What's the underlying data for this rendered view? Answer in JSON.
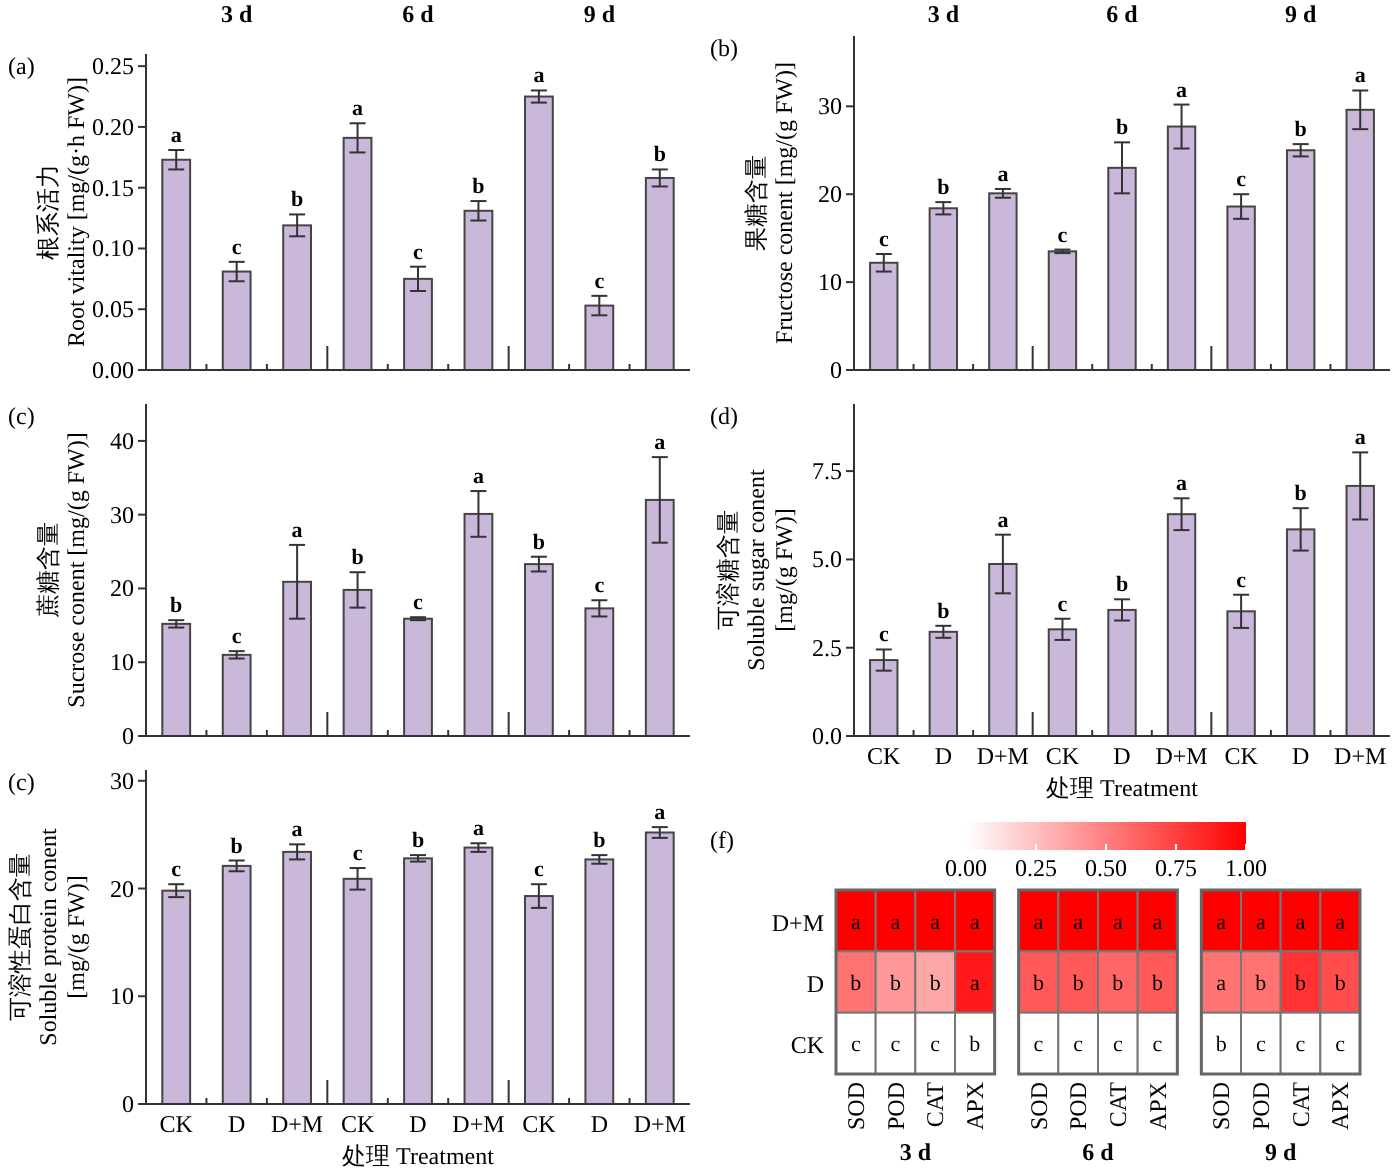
{
  "chart_data": [
    {
      "type": "bar",
      "title": "(a)",
      "ylabel": "根系活力\nRoot vitality [mg/(g·h FW)]",
      "color": "#c9b8da",
      "categories": [
        null,
        null,
        null,
        null,
        null,
        null,
        null,
        null,
        null
      ],
      "values": [
        0.173,
        0.081,
        0.119,
        0.191,
        0.075,
        0.131,
        0.225,
        0.053,
        0.158
      ],
      "errors": [
        0.008,
        0.008,
        0.009,
        0.012,
        0.01,
        0.008,
        0.005,
        0.008,
        0.007
      ],
      "value_labels": [
        "a",
        "c",
        "b",
        "a",
        "c",
        "b",
        "a",
        "c",
        "b"
      ],
      "ylim": [
        0,
        0.26
      ],
      "yticks": [
        {
          "value": 0,
          "label": "0.00"
        },
        {
          "value": 0.05,
          "label": "0.05"
        },
        {
          "value": 0.1,
          "label": "0.10"
        },
        {
          "value": 0.15,
          "label": "0.15"
        },
        {
          "value": 0.2,
          "label": "0.20"
        },
        {
          "value": 0.25,
          "label": "0.25"
        }
      ],
      "annotations": [
        "3 d",
        "6 d",
        "9 d"
      ]
    },
    {
      "type": "bar",
      "title": "(b)",
      "ylabel": "果糖含量\nFructose conent [mg/(g FW)]",
      "color": "#c9b8da",
      "categories": [
        null,
        null,
        null,
        null,
        null,
        null,
        null,
        null,
        null
      ],
      "values": [
        12.2,
        18.4,
        20.1,
        13.5,
        23.0,
        27.7,
        18.6,
        25.0,
        29.6
      ],
      "errors": [
        1.0,
        0.7,
        0.5,
        0.2,
        2.9,
        2.5,
        1.4,
        0.7,
        2.2
      ],
      "value_labels": [
        "c",
        "b",
        "a",
        "c",
        "b",
        "a",
        "c",
        "b",
        "a"
      ],
      "ylim": [
        0,
        38
      ],
      "yticks": [
        0,
        10,
        20,
        30
      ],
      "annotations": [
        "3 d",
        "6 d",
        "9 d"
      ]
    },
    {
      "type": "bar",
      "title": "(c)",
      "ylabel": "蔗糖含量\nSucrose conent [mg/(g FW)]",
      "color": "#c9b8da",
      "categories": [
        null,
        null,
        null,
        null,
        null,
        null,
        null,
        null,
        null
      ],
      "values": [
        15.2,
        11.0,
        20.9,
        19.8,
        15.9,
        30.1,
        23.3,
        17.3,
        32.0
      ],
      "errors": [
        0.5,
        0.5,
        5.0,
        2.4,
        0.2,
        3.1,
        1.0,
        1.1,
        5.8
      ],
      "value_labels": [
        "b",
        "c",
        "a",
        "b",
        "c",
        "a",
        "b",
        "c",
        "a"
      ],
      "ylim": [
        0,
        45
      ],
      "yticks": [
        0,
        10,
        20,
        30,
        40
      ]
    },
    {
      "type": "bar",
      "title": "(d)",
      "ylabel": "可溶糖含量\nSoluble sugar conent\n[mg/(g FW)]",
      "xlabel": "处理 Treatment",
      "color": "#c9b8da",
      "categories": [
        "CK",
        "D",
        "D+M",
        "CK",
        "D",
        "D+M",
        "CK",
        "D",
        "D+M"
      ],
      "values": [
        2.15,
        2.95,
        4.87,
        3.02,
        3.57,
        6.28,
        3.53,
        5.85,
        7.08
      ],
      "errors": [
        0.3,
        0.17,
        0.83,
        0.3,
        0.3,
        0.45,
        0.47,
        0.6,
        0.95
      ],
      "value_labels": [
        "c",
        "b",
        "a",
        "c",
        "b",
        "a",
        "c",
        "b",
        "a"
      ],
      "ylim": [
        0,
        9.4
      ],
      "yticks": [
        {
          "value": 0,
          "label": "0.0"
        },
        2.5,
        {
          "value": 5,
          "label": "5.0"
        },
        7.5
      ]
    },
    {
      "type": "bar",
      "title": "(c)",
      "ylabel": "可溶性蛋白含量\nSoluble protein conent\n[mg/(g FW)]",
      "xlabel": "处理 Treatment",
      "color": "#c9b8da",
      "categories": [
        "CK",
        "D",
        "D+M",
        "CK",
        "D",
        "D+M",
        "CK",
        "D",
        "D+M"
      ],
      "values": [
        19.8,
        22.1,
        23.4,
        20.9,
        22.8,
        23.8,
        19.3,
        22.7,
        25.2
      ],
      "errors": [
        0.6,
        0.5,
        0.7,
        1.0,
        0.3,
        0.4,
        1.1,
        0.4,
        0.5
      ],
      "value_labels": [
        "c",
        "b",
        "a",
        "c",
        "b",
        "a",
        "c",
        "b",
        "a"
      ],
      "ylim": [
        0,
        31
      ],
      "yticks": [
        0,
        10,
        20,
        30
      ]
    },
    {
      "type": "heatmap",
      "title": "(f)",
      "categories": [
        "SOD",
        "POD",
        "CAT",
        "APX",
        "SOD",
        "POD",
        "CAT",
        "APX",
        "SOD",
        "POD",
        "CAT",
        "APX"
      ],
      "y_categories": [
        "D+M",
        "D",
        "CK"
      ],
      "cells": [
        [
          1,
          1,
          1,
          1,
          1,
          1,
          1,
          1,
          1,
          1,
          1,
          1
        ],
        [
          0.55,
          0.4,
          0.35,
          0.9,
          0.65,
          0.65,
          0.6,
          0.65,
          0.55,
          0.55,
          0.8,
          0.7
        ],
        [
          0,
          0,
          0,
          0,
          0,
          0,
          0,
          0,
          0,
          0,
          0,
          0
        ]
      ],
      "cell_labels": [
        [
          "a",
          "a",
          "a",
          "a",
          "a",
          "a",
          "a",
          "a",
          "a",
          "a",
          "a",
          "a"
        ],
        [
          "b",
          "b",
          "b",
          "a",
          "b",
          "b",
          "b",
          "b",
          "a",
          "b",
          "b",
          "b"
        ],
        [
          "c",
          "c",
          "c",
          "b",
          "c",
          "c",
          "c",
          "c",
          "b",
          "c",
          "c",
          "c"
        ]
      ],
      "clim": [
        0,
        1
      ],
      "cticks": [
        {
          "value": 0,
          "label": "0.00"
        },
        {
          "value": 0.25,
          "label": "0.25"
        },
        {
          "value": 0.5,
          "label": "0.50"
        },
        {
          "value": 0.75,
          "label": "0.75"
        },
        {
          "value": 1,
          "label": "1.00"
        }
      ],
      "annotations": [
        "3 d",
        "6 d",
        "9 d"
      ]
    }
  ]
}
